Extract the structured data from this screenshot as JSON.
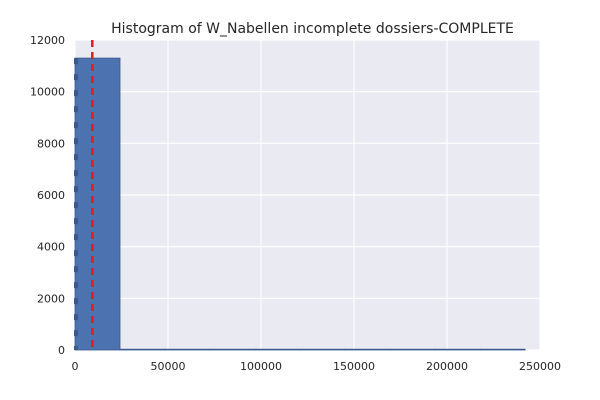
{
  "chart_data": {
    "type": "histogram",
    "title": "Histogram of W_Nabellen incomplete dossiers-COMPLETE",
    "xlabel": "",
    "ylabel": "",
    "xlim": [
      0,
      250000
    ],
    "ylim": [
      0,
      12000
    ],
    "x_ticks": [
      0,
      50000,
      100000,
      150000,
      200000,
      250000
    ],
    "y_ticks": [
      0,
      2000,
      4000,
      6000,
      8000,
      10000,
      12000
    ],
    "grid": true,
    "legend": "none",
    "bins": [
      {
        "x0": 0,
        "x1": 24200,
        "count": 11300
      },
      {
        "x0": 24200,
        "x1": 48400,
        "count": 4
      },
      {
        "x0": 48400,
        "x1": 72600,
        "count": 2
      },
      {
        "x0": 72600,
        "x1": 96800,
        "count": 1
      },
      {
        "x0": 96800,
        "x1": 121000,
        "count": 1
      },
      {
        "x0": 121000,
        "x1": 145200,
        "count": 1
      },
      {
        "x0": 145200,
        "x1": 169400,
        "count": 0
      },
      {
        "x0": 169400,
        "x1": 193600,
        "count": 1
      },
      {
        "x0": 193600,
        "x1": 217800,
        "count": 0
      },
      {
        "x0": 217800,
        "x1": 242000,
        "count": 1
      }
    ],
    "mean_line_x": 9300,
    "colors": {
      "background": "#eaeaf2",
      "grid": "#ffffff",
      "bar_fill": "#4c72b0",
      "bar_edge": "#3a5a8f",
      "mean_line": "#e41a1c"
    }
  }
}
